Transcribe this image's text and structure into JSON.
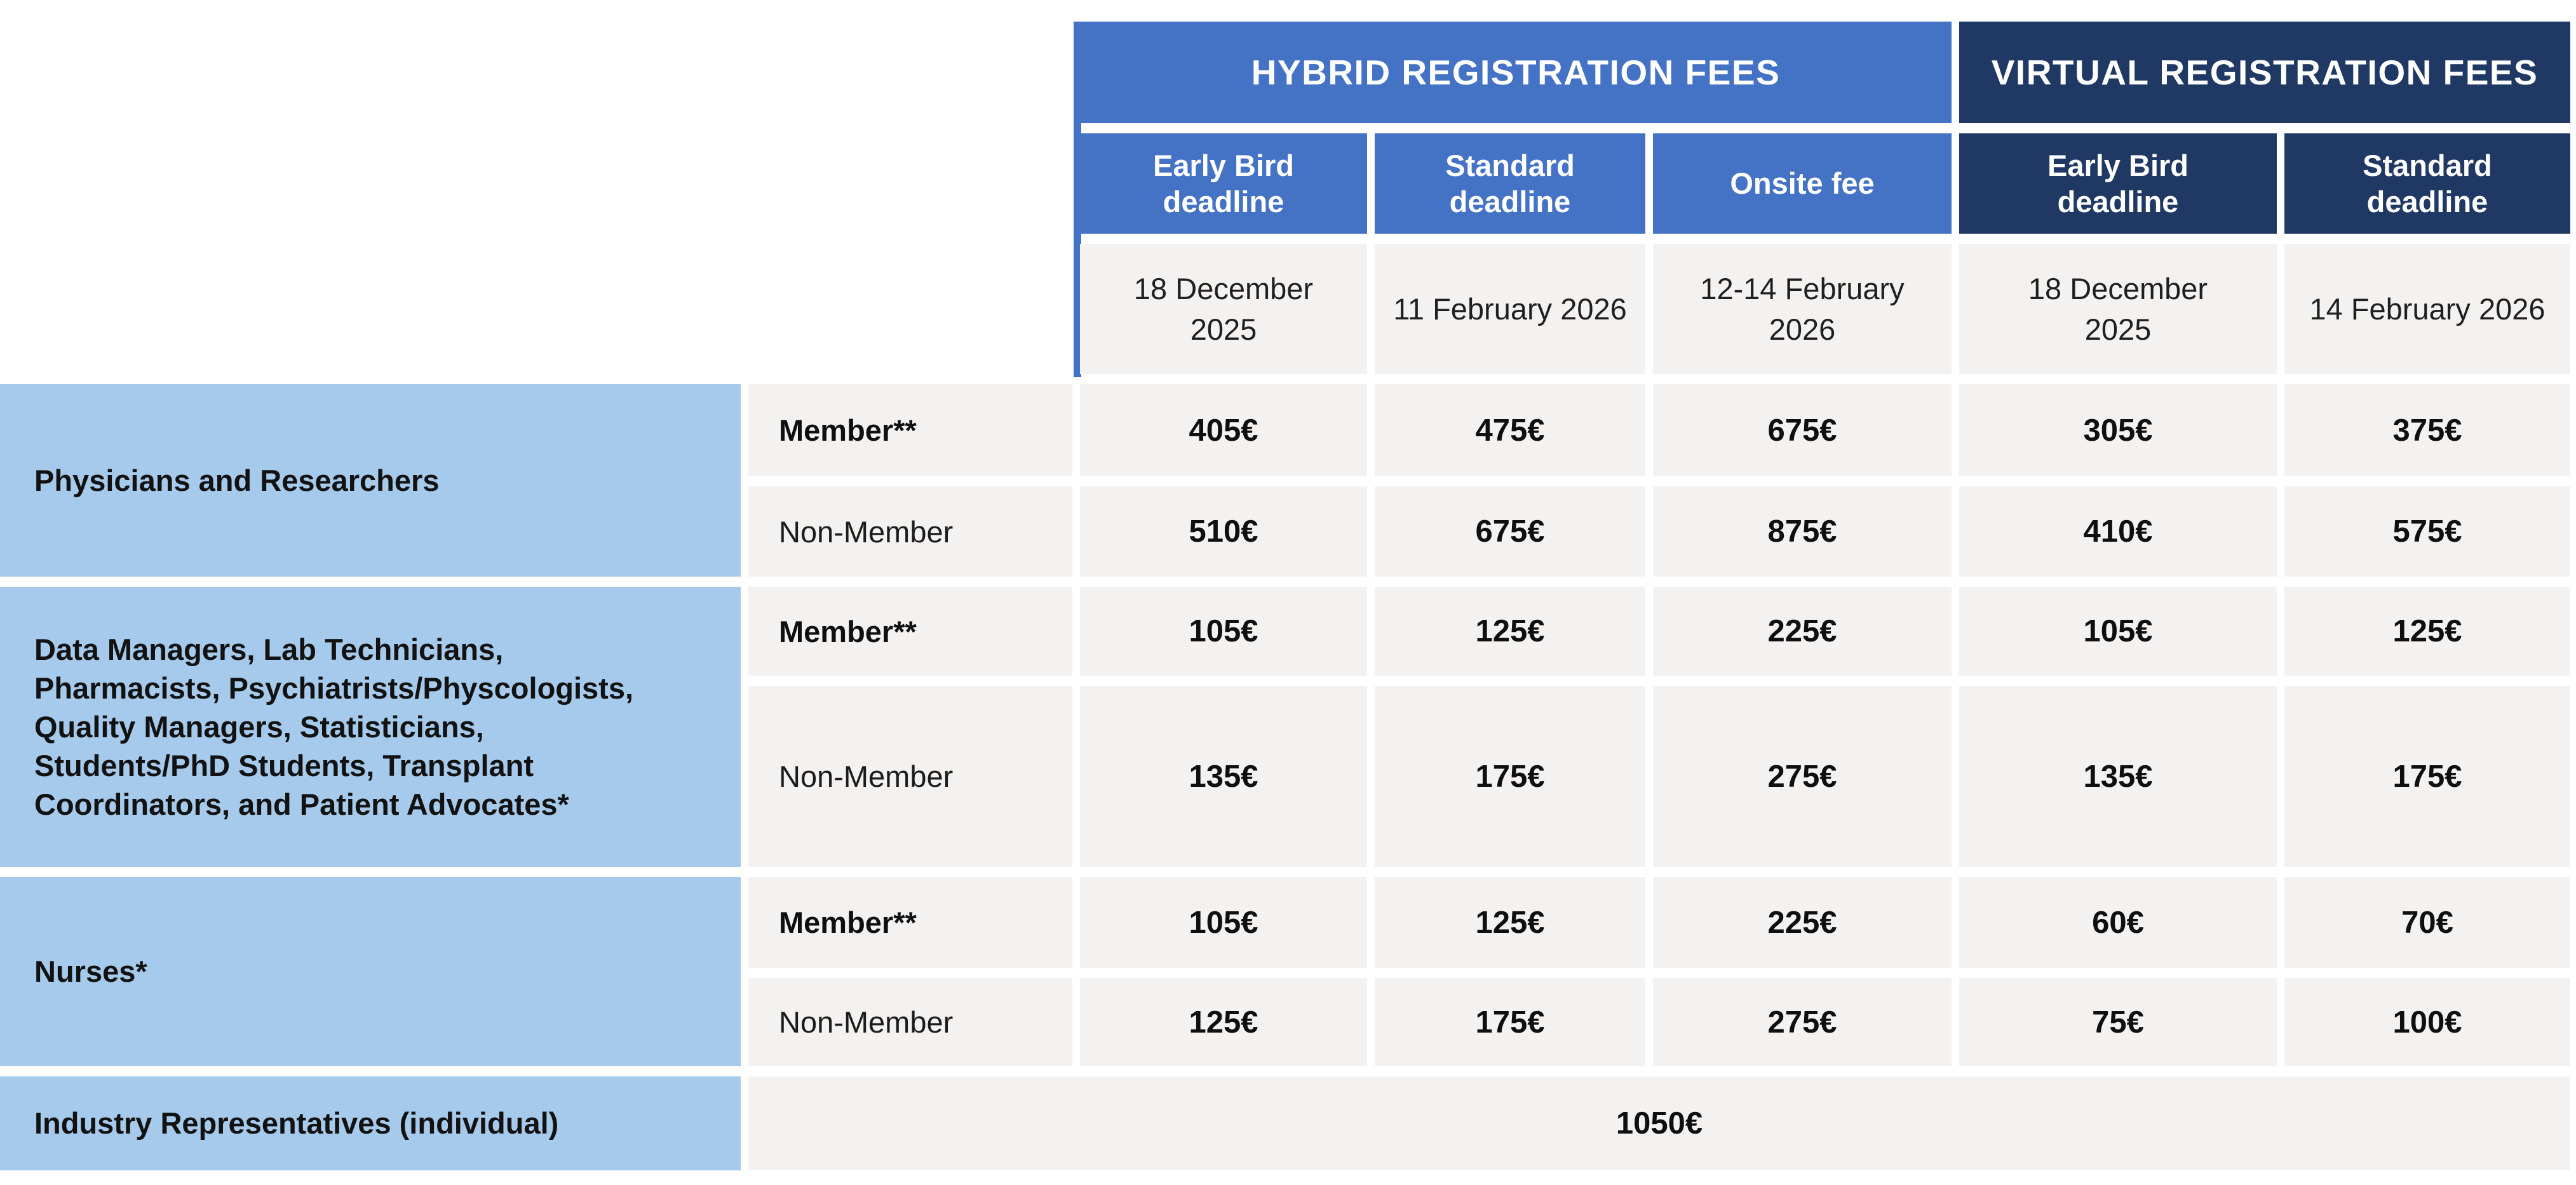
{
  "table": {
    "header_groups": [
      {
        "id": "hybrid",
        "label": "HYBRID REGISTRATION FEES"
      },
      {
        "id": "virtual",
        "label": "VIRTUAL REGISTRATION FEES"
      }
    ],
    "columns": [
      {
        "group": "hybrid",
        "label": "Early Bird deadline",
        "date": "18 December 2025"
      },
      {
        "group": "hybrid",
        "label": "Standard deadline",
        "date": "11 February 2026"
      },
      {
        "group": "hybrid",
        "label": "Onsite fee",
        "date": "12-14 February 2026"
      },
      {
        "group": "virtual",
        "label": "Early Bird deadline",
        "date": "18 December 2025"
      },
      {
        "group": "virtual",
        "label": "Standard deadline",
        "date": "14 February 2026"
      }
    ],
    "sections": [
      {
        "category": "Physicians and Researchers",
        "rows": [
          {
            "membership": "Member**",
            "fees": [
              "405€",
              "475€",
              "675€",
              "305€",
              "375€"
            ]
          },
          {
            "membership": "Non-Member",
            "fees": [
              "510€",
              "675€",
              "875€",
              "410€",
              "575€"
            ]
          }
        ]
      },
      {
        "category": "Data Managers, Lab Technicians, Pharmacists, Psychiatrists/Physcologists, Quality Managers, Statisticians, Students/PhD Students, Transplant Coordinators, and Patient Advocates*",
        "rows": [
          {
            "membership": "Member**",
            "fees": [
              "105€",
              "125€",
              "225€",
              "105€",
              "125€"
            ]
          },
          {
            "membership": "Non-Member",
            "fees": [
              "135€",
              "175€",
              "275€",
              "135€",
              "175€"
            ]
          }
        ]
      },
      {
        "category": "Nurses*",
        "rows": [
          {
            "membership": "Member**",
            "fees": [
              "105€",
              "125€",
              "225€",
              "60€",
              "70€"
            ]
          },
          {
            "membership": "Non-Member",
            "fees": [
              "125€",
              "175€",
              "275€",
              "75€",
              "100€"
            ]
          }
        ]
      },
      {
        "category": "Industry Representatives (individual)",
        "flat_fee": "1050€"
      }
    ],
    "colors": {
      "hybrid_blue": "#4472C4",
      "virtual_navy": "#1F3864",
      "category_blue": "#A6CAEB",
      "cell_gray": "#F4F2F1"
    }
  }
}
